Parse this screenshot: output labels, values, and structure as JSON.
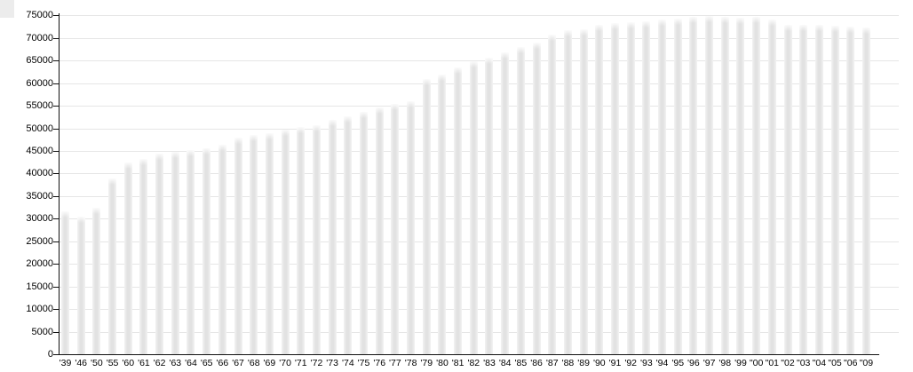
{
  "chart_data": {
    "type": "bar",
    "title": "",
    "xlabel": "",
    "ylabel": "",
    "ylim": [
      0,
      75000
    ],
    "ytick_step": 5000,
    "ytick_labels": [
      "0",
      "5000",
      "10000",
      "15000",
      "20000",
      "25000",
      "30000",
      "35000",
      "40000",
      "45000",
      "50000",
      "55000",
      "60000",
      "65000",
      "70000",
      "75000"
    ],
    "grid": true,
    "legend": false,
    "bar_color": "#e2e2e2",
    "gridline_color": "#e6e6e6",
    "axis_color": "#111111",
    "background_color": "#ffffff",
    "categories": [
      "'39",
      "'46",
      "'50",
      "'55",
      "'60",
      "'61",
      "'62",
      "'63",
      "'64",
      "'65",
      "'66",
      "'67",
      "'68",
      "'69",
      "'70",
      "'71",
      "'72",
      "'73",
      "'74",
      "'75",
      "'76",
      "'77",
      "'78",
      "'79",
      "'80",
      "'81",
      "'82",
      "'83",
      "'84",
      "'85",
      "'86",
      "'87",
      "'88",
      "'89",
      "'90",
      "'91",
      "'92",
      "'93",
      "'94",
      "'95",
      "'96",
      "'97",
      "'98",
      "'99",
      "\"00",
      "\"01",
      "\"02",
      "\"03",
      "\"04",
      "\"05",
      "\"06",
      "\"09"
    ],
    "values": [
      31600,
      30400,
      32500,
      39000,
      42500,
      43300,
      44500,
      44900,
      45300,
      45500,
      46400,
      48000,
      48600,
      49000,
      49800,
      50400,
      50800,
      51800,
      52600,
      53600,
      54600,
      55500,
      56000,
      61000,
      61900,
      63400,
      64900,
      65700,
      66800,
      68000,
      69000,
      70700,
      71700,
      72000,
      72900,
      73400,
      73600,
      73800,
      74100,
      74300,
      74700,
      74800,
      74700,
      74500,
      74600,
      74000,
      72900,
      73000,
      72900,
      72800,
      72500,
      72400
    ]
  }
}
